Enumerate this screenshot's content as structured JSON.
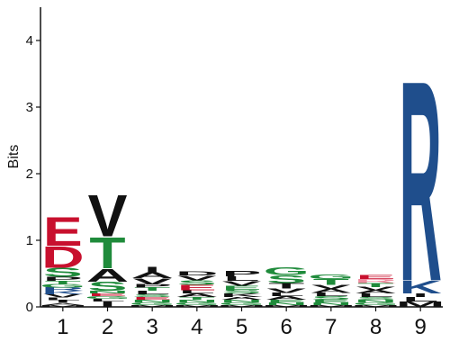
{
  "chart_data": {
    "type": "sequence-logo",
    "ylabel": "Bits",
    "ylim": [
      0,
      4.5
    ],
    "yticks": [
      0,
      1,
      2,
      3,
      4
    ],
    "xticks": [
      "1",
      "2",
      "3",
      "4",
      "5",
      "6",
      "7",
      "8",
      "9"
    ],
    "colors": {
      "acidic": "#c8102e",
      "polar": "#1f8b3b",
      "hydrophobic": "#111111",
      "basic": "#1f4e8c",
      "pink": "#f08ca0"
    },
    "positions": [
      {
        "x": "1",
        "stack": [
          {
            "letter": "M",
            "height": 0.03,
            "color": "#111111"
          },
          {
            "letter": "A",
            "height": 0.03,
            "color": "#111111"
          },
          {
            "letter": "I",
            "height": 0.04,
            "color": "#111111"
          },
          {
            "letter": "L",
            "height": 0.04,
            "color": "#111111"
          },
          {
            "letter": "V",
            "height": 0.05,
            "color": "#111111"
          },
          {
            "letter": "K",
            "height": 0.05,
            "color": "#1f4e8c"
          },
          {
            "letter": "R",
            "height": 0.05,
            "color": "#1f4e8c"
          },
          {
            "letter": "G",
            "height": 0.05,
            "color": "#1f8b3b"
          },
          {
            "letter": "T",
            "height": 0.05,
            "color": "#1f8b3b"
          },
          {
            "letter": "P",
            "height": 0.06,
            "color": "#111111"
          },
          {
            "letter": "S",
            "height": 0.14,
            "color": "#1f8b3b"
          },
          {
            "letter": "D",
            "height": 0.33,
            "color": "#c8102e"
          },
          {
            "letter": "E",
            "height": 0.44,
            "color": "#c8102e"
          }
        ]
      },
      {
        "x": "2",
        "stack": [
          {
            "letter": "I",
            "height": 0.08,
            "color": "#111111"
          },
          {
            "letter": "L",
            "height": 0.04,
            "color": "#111111"
          },
          {
            "letter": "G",
            "height": 0.04,
            "color": "#1f8b3b"
          },
          {
            "letter": "E",
            "height": 0.04,
            "color": "#c8102e"
          },
          {
            "letter": "N",
            "height": 0.04,
            "color": "#1f8b3b"
          },
          {
            "letter": "S",
            "height": 0.14,
            "color": "#1f8b3b"
          },
          {
            "letter": "A",
            "height": 0.2,
            "color": "#111111"
          },
          {
            "letter": "T",
            "height": 0.48,
            "color": "#1f8b3b"
          },
          {
            "letter": "V",
            "height": 0.64,
            "color": "#111111"
          }
        ]
      },
      {
        "x": "3",
        "stack": [
          {
            "letter": "M",
            "height": 0.03,
            "color": "#111111"
          },
          {
            "letter": "G",
            "height": 0.04,
            "color": "#1f8b3b"
          },
          {
            "letter": "N",
            "height": 0.04,
            "color": "#1f8b3b"
          },
          {
            "letter": "E",
            "height": 0.04,
            "color": "#c8102e"
          },
          {
            "letter": "S",
            "height": 0.04,
            "color": "#1f8b3b"
          },
          {
            "letter": "L",
            "height": 0.05,
            "color": "#111111"
          },
          {
            "letter": "T",
            "height": 0.05,
            "color": "#1f8b3b"
          },
          {
            "letter": "P",
            "height": 0.05,
            "color": "#111111"
          },
          {
            "letter": "V",
            "height": 0.09,
            "color": "#111111"
          },
          {
            "letter": "A",
            "height": 0.09,
            "color": "#111111"
          },
          {
            "letter": "I",
            "height": 0.08,
            "color": "#111111"
          }
        ]
      },
      {
        "x": "4",
        "stack": [
          {
            "letter": "M",
            "height": 0.03,
            "color": "#111111"
          },
          {
            "letter": "G",
            "height": 0.04,
            "color": "#1f8b3b"
          },
          {
            "letter": "N",
            "height": 0.04,
            "color": "#1f8b3b"
          },
          {
            "letter": "T",
            "height": 0.04,
            "color": "#1f8b3b"
          },
          {
            "letter": "A",
            "height": 0.05,
            "color": "#111111"
          },
          {
            "letter": "L",
            "height": 0.05,
            "color": "#111111"
          },
          {
            "letter": "E",
            "height": 0.08,
            "color": "#c8102e"
          },
          {
            "letter": "S",
            "height": 0.07,
            "color": "#1f8b3b"
          },
          {
            "letter": "V",
            "height": 0.07,
            "color": "#111111"
          },
          {
            "letter": "D",
            "height": 0.06,
            "color": "#111111"
          }
        ]
      },
      {
        "x": "5",
        "stack": [
          {
            "letter": "M",
            "height": 0.03,
            "color": "#111111"
          },
          {
            "letter": "G",
            "height": 0.04,
            "color": "#1f8b3b"
          },
          {
            "letter": "N",
            "height": 0.04,
            "color": "#1f8b3b"
          },
          {
            "letter": "A",
            "height": 0.04,
            "color": "#111111"
          },
          {
            "letter": "K",
            "height": 0.05,
            "color": "#111111"
          },
          {
            "letter": "S",
            "height": 0.06,
            "color": "#1f8b3b"
          },
          {
            "letter": "E",
            "height": 0.06,
            "color": "#1f8b3b"
          },
          {
            "letter": "V",
            "height": 0.07,
            "color": "#111111"
          },
          {
            "letter": "L",
            "height": 0.07,
            "color": "#111111"
          },
          {
            "letter": "P",
            "height": 0.08,
            "color": "#111111"
          }
        ]
      },
      {
        "x": "6",
        "stack": [
          {
            "letter": "M",
            "height": 0.03,
            "color": "#111111"
          },
          {
            "letter": "N",
            "height": 0.04,
            "color": "#1f8b3b"
          },
          {
            "letter": "E",
            "height": 0.04,
            "color": "#1f8b3b"
          },
          {
            "letter": "A",
            "height": 0.05,
            "color": "#111111"
          },
          {
            "letter": "L",
            "height": 0.05,
            "color": "#111111"
          },
          {
            "letter": "V",
            "height": 0.07,
            "color": "#111111"
          },
          {
            "letter": "T",
            "height": 0.08,
            "color": "#111111"
          },
          {
            "letter": "S",
            "height": 0.12,
            "color": "#1f8b3b"
          },
          {
            "letter": "G",
            "height": 0.12,
            "color": "#1f8b3b"
          }
        ]
      },
      {
        "x": "7",
        "stack": [
          {
            "letter": "M",
            "height": 0.03,
            "color": "#111111"
          },
          {
            "letter": "N",
            "height": 0.04,
            "color": "#1f8b3b"
          },
          {
            "letter": "E",
            "height": 0.04,
            "color": "#1f8b3b"
          },
          {
            "letter": "S",
            "height": 0.05,
            "color": "#1f8b3b"
          },
          {
            "letter": "L",
            "height": 0.05,
            "color": "#111111"
          },
          {
            "letter": "A",
            "height": 0.06,
            "color": "#111111"
          },
          {
            "letter": "V",
            "height": 0.06,
            "color": "#111111"
          },
          {
            "letter": "T",
            "height": 0.09,
            "color": "#1f8b3b"
          },
          {
            "letter": "G",
            "height": 0.07,
            "color": "#1f8b3b"
          }
        ]
      },
      {
        "x": "8",
        "stack": [
          {
            "letter": "M",
            "height": 0.03,
            "color": "#111111"
          },
          {
            "letter": "G",
            "height": 0.04,
            "color": "#1f8b3b"
          },
          {
            "letter": "N",
            "height": 0.04,
            "color": "#1f8b3b"
          },
          {
            "letter": "S",
            "height": 0.04,
            "color": "#1f8b3b"
          },
          {
            "letter": "L",
            "height": 0.05,
            "color": "#111111"
          },
          {
            "letter": "A",
            "height": 0.05,
            "color": "#111111"
          },
          {
            "letter": "V",
            "height": 0.05,
            "color": "#111111"
          },
          {
            "letter": "T",
            "height": 0.06,
            "color": "#1f8b3b"
          },
          {
            "letter": "R",
            "height": 0.06,
            "color": "#f08ca0"
          },
          {
            "letter": "E",
            "height": 0.06,
            "color": "#c8102e"
          }
        ]
      },
      {
        "x": "9",
        "stack": [
          {
            "letter": "M",
            "height": 0.08,
            "color": "#111111"
          },
          {
            "letter": "L",
            "height": 0.07,
            "color": "#111111"
          },
          {
            "letter": "I",
            "height": 0.05,
            "color": "#111111"
          },
          {
            "letter": "K",
            "height": 0.2,
            "color": "#1f4e8c"
          },
          {
            "letter": "R",
            "height": 3.1,
            "color": "#1f4e8c"
          }
        ]
      }
    ]
  }
}
